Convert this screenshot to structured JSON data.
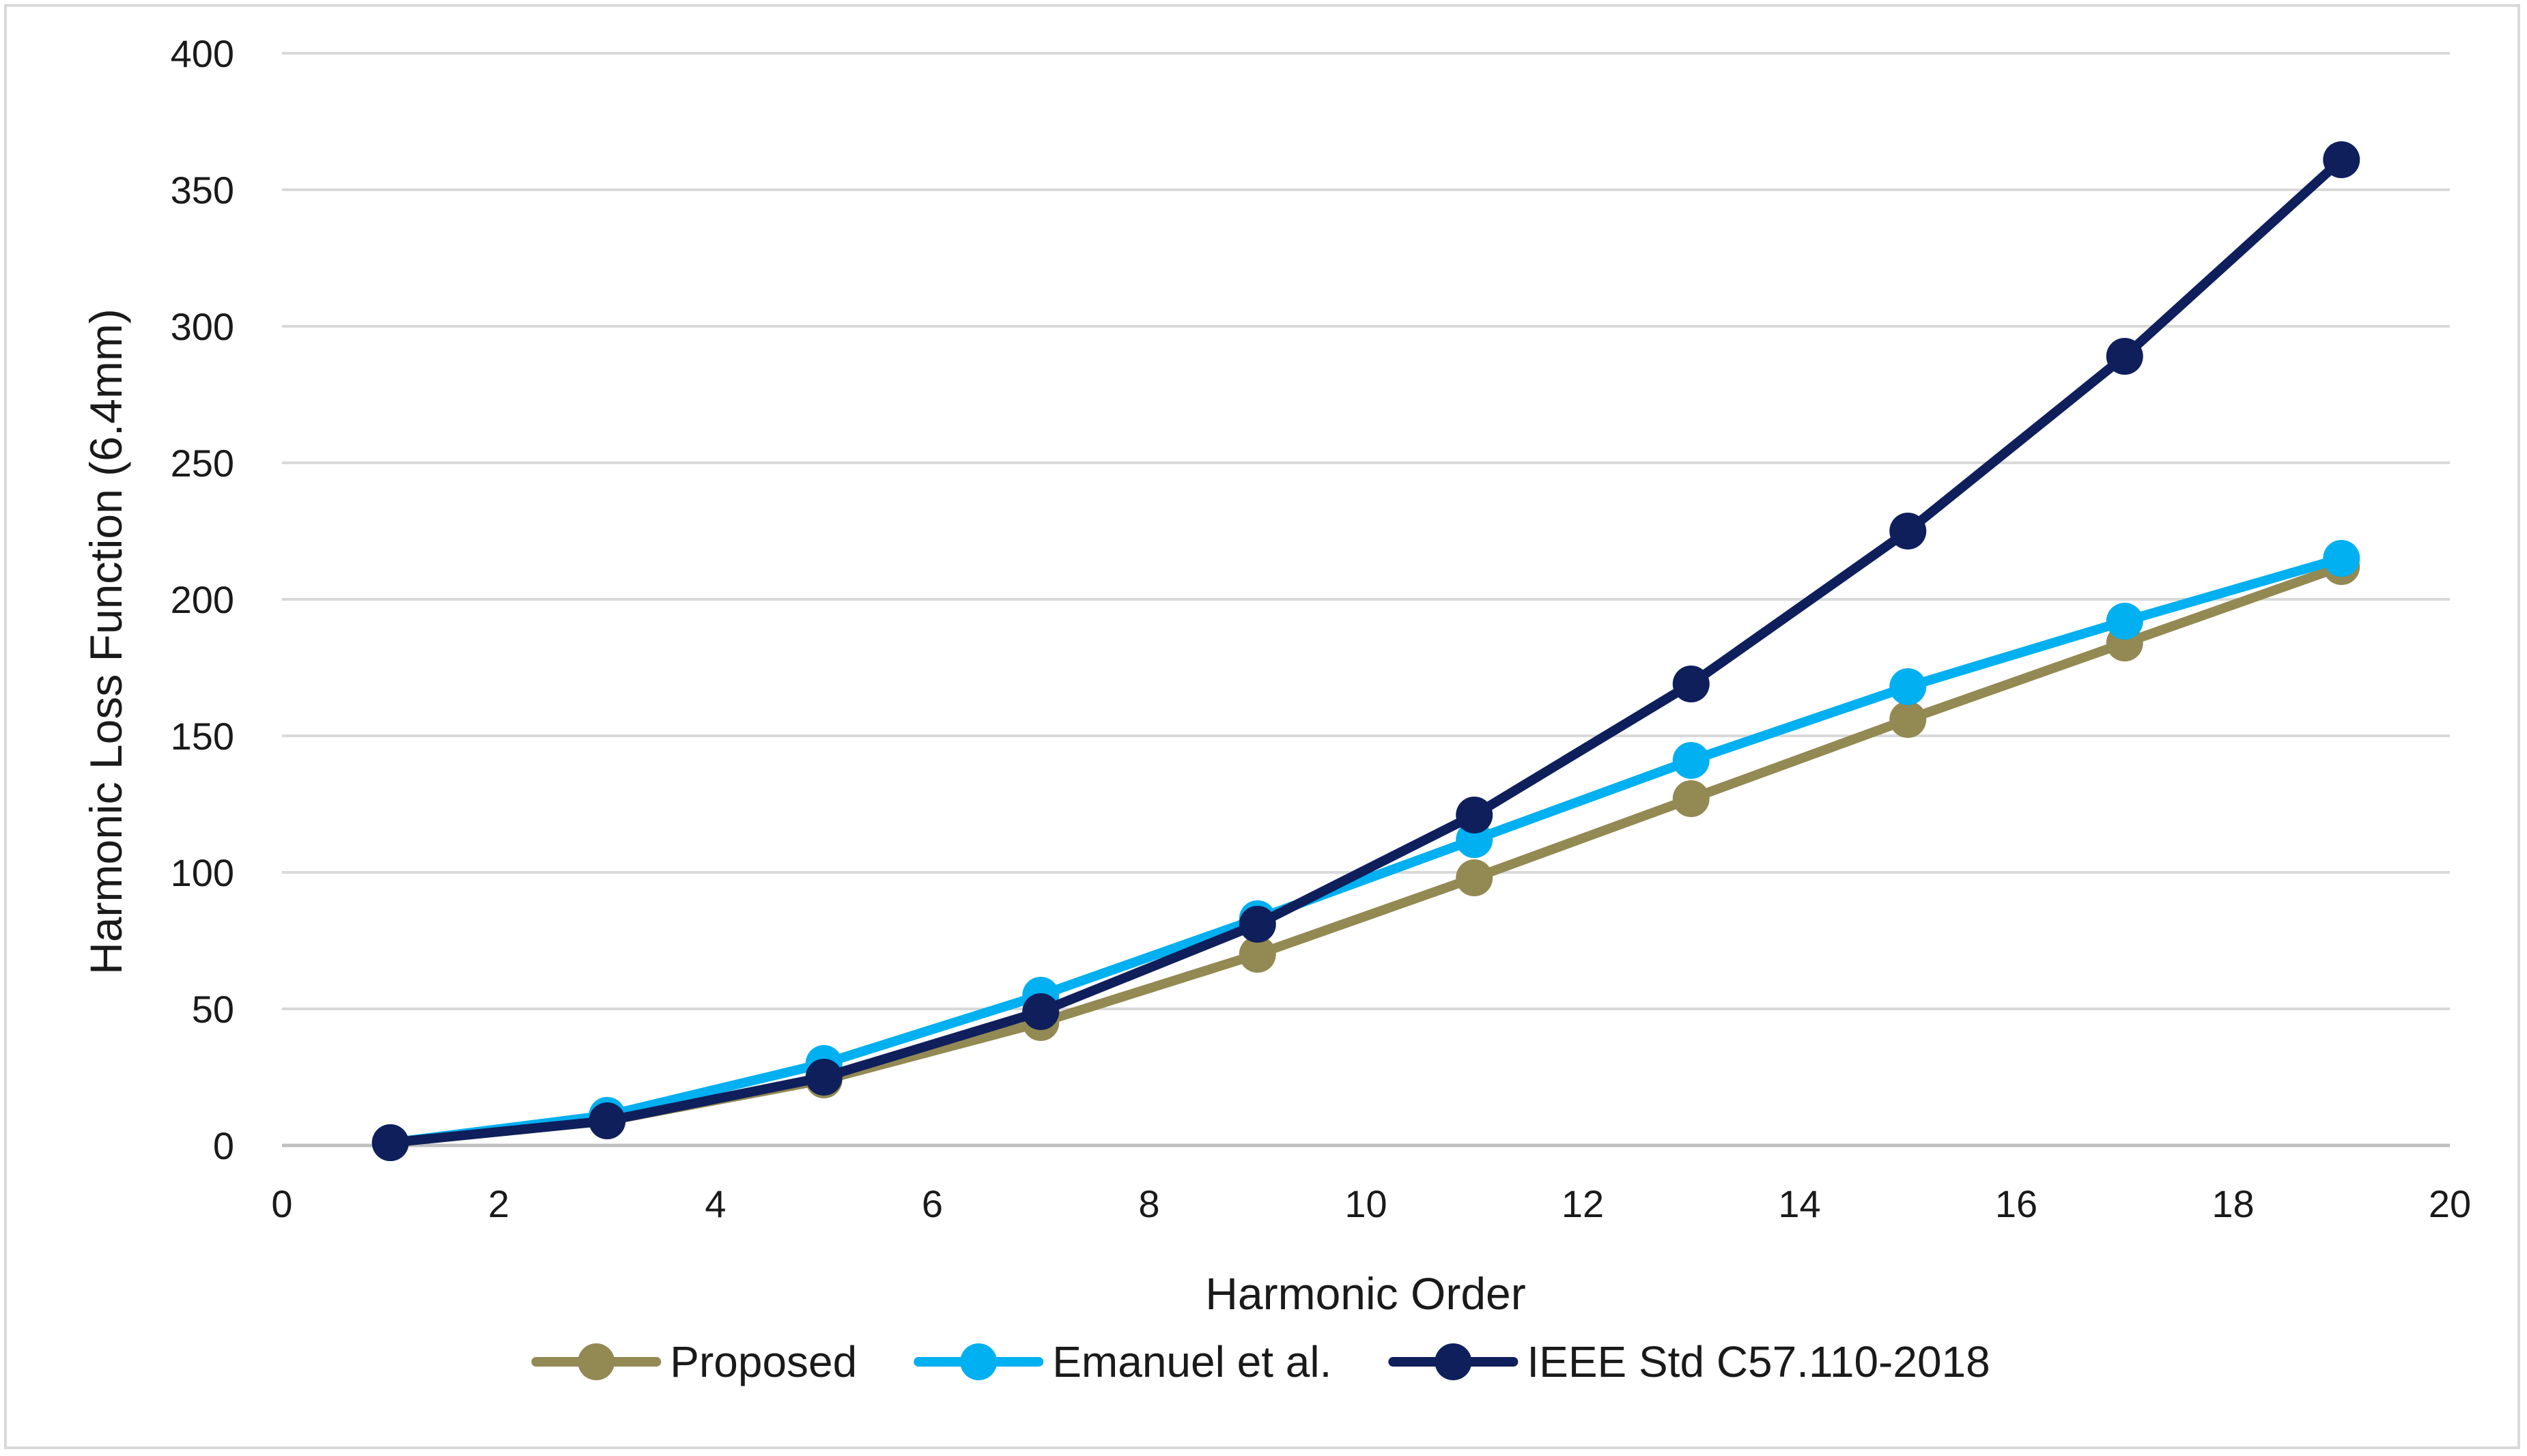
{
  "chart_data": {
    "type": "line",
    "title": "",
    "xlabel": "Harmonic Order",
    "ylabel": "Harmonic Loss Function (6.4mm)",
    "xlim": [
      0,
      20
    ],
    "ylim": [
      0,
      400
    ],
    "x_ticks": [
      0,
      2,
      4,
      6,
      8,
      10,
      12,
      14,
      16,
      18,
      20
    ],
    "y_ticks": [
      0,
      50,
      100,
      150,
      200,
      250,
      300,
      350,
      400
    ],
    "grid": "horizontal",
    "legend_position": "bottom",
    "x": [
      1,
      3,
      5,
      7,
      9,
      11,
      13,
      15,
      17,
      19
    ],
    "series": [
      {
        "name": "Proposed",
        "color": "#938953",
        "values": [
          1,
          9,
          24,
          45,
          70,
          98,
          127,
          156,
          184,
          212
        ]
      },
      {
        "name": "Emanuel et al.",
        "color": "#00b0f0",
        "values": [
          1,
          11,
          30,
          55,
          83,
          112,
          141,
          168,
          192,
          215
        ]
      },
      {
        "name": "IEEE Std C57.110-2018",
        "color": "#0f1f5c",
        "values": [
          1,
          9,
          25,
          49,
          81,
          121,
          169,
          225,
          289,
          361
        ]
      }
    ]
  }
}
